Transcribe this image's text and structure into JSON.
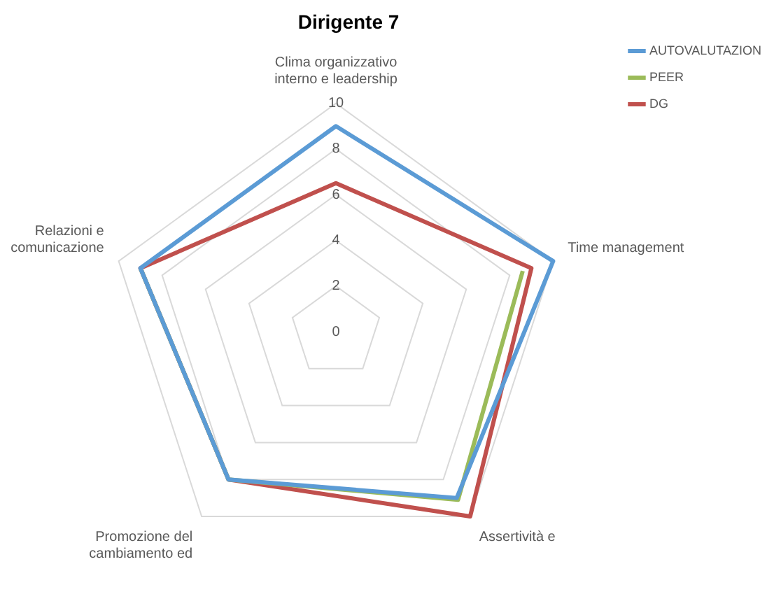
{
  "chart_data": {
    "type": "radar",
    "title": "Dirigente 7",
    "categories": [
      "Clima organizzativo interno e leadership",
      "Time management",
      "Assertività e",
      "Promozione del cambiamento ed",
      "Relazioni e comunicazione"
    ],
    "series": [
      {
        "name": "AUTOVALUTAZION",
        "color": "#5b9bd5",
        "values": [
          9,
          10,
          9,
          8,
          9
        ]
      },
      {
        "name": "PEER",
        "color": "#9bbb59",
        "values": [
          null,
          8.6,
          9.1,
          8,
          9
        ]
      },
      {
        "name": "DG",
        "color": "#c0504d",
        "values": [
          6.5,
          9,
          10,
          8,
          9
        ]
      }
    ],
    "ylim": [
      0,
      10
    ],
    "yticks": [
      0,
      2,
      4,
      6,
      8,
      10
    ],
    "grid": true,
    "legend": "top right",
    "marker": "none"
  }
}
